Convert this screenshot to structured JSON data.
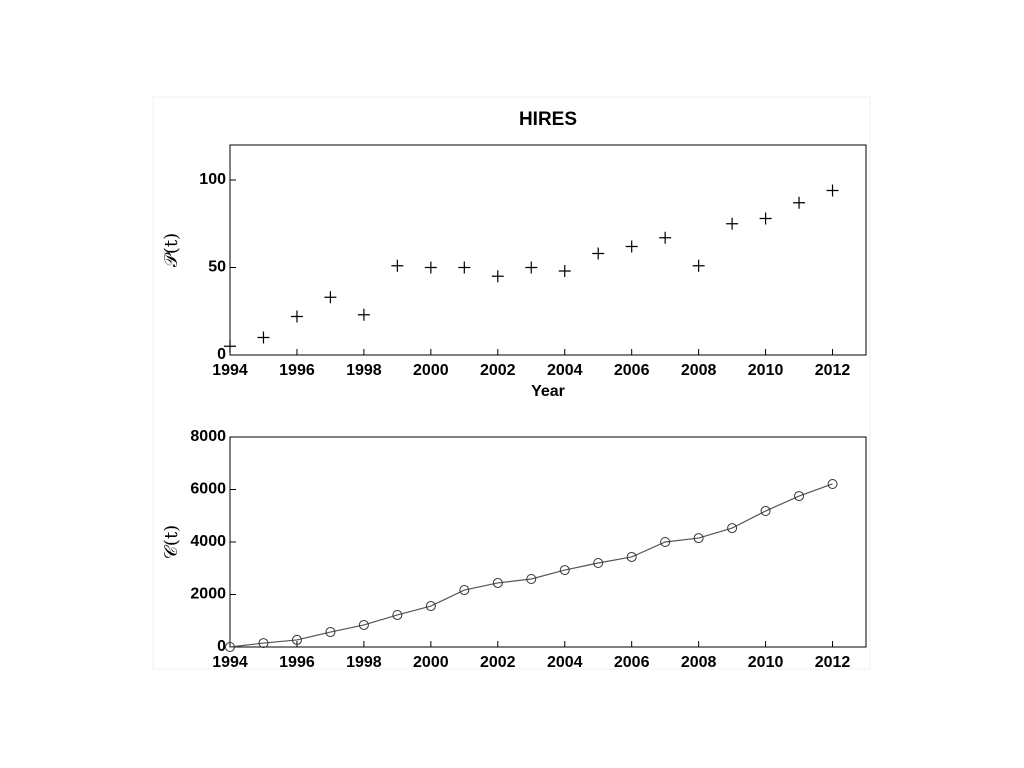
{
  "chart_data": [
    {
      "type": "scatter",
      "title": "HIRES",
      "xlabel": "Year",
      "ylabel": "𝒫(t)",
      "marker": "plus",
      "color": "#000000",
      "x": [
        1994,
        1995,
        1996,
        1997,
        1998,
        1999,
        2000,
        2001,
        2002,
        2003,
        2004,
        2005,
        2006,
        2007,
        2008,
        2009,
        2010,
        2011,
        2012
      ],
      "values": [
        5,
        10,
        22,
        33,
        23,
        51,
        50,
        50,
        45,
        50,
        48,
        58,
        62,
        67,
        51,
        75,
        78,
        87,
        94
      ],
      "xlim": [
        1994,
        2013
      ],
      "xticks": [
        1994,
        1996,
        1998,
        2000,
        2002,
        2004,
        2006,
        2008,
        2010,
        2012
      ],
      "ylim": [
        0,
        120
      ],
      "yticks": [
        0,
        50,
        100
      ]
    },
    {
      "type": "line",
      "ylabel": "𝒞(t)",
      "marker": "circle",
      "color": "#555555",
      "x": [
        1994,
        1995,
        1996,
        1997,
        1998,
        1999,
        2000,
        2001,
        2002,
        2003,
        2004,
        2005,
        2006,
        2007,
        2008,
        2009,
        2010,
        2011,
        2012
      ],
      "values": [
        0,
        150,
        270,
        570,
        840,
        1220,
        1560,
        2170,
        2440,
        2590,
        2930,
        3200,
        3430,
        4000,
        4150,
        4530,
        5180,
        5750,
        6210
      ],
      "xlim": [
        1994,
        2013
      ],
      "xticks": [
        1994,
        1996,
        1998,
        2000,
        2002,
        2004,
        2006,
        2008,
        2010,
        2012
      ],
      "ylim": [
        0,
        8000
      ],
      "yticks": [
        0,
        2000,
        4000,
        6000,
        8000
      ]
    }
  ]
}
